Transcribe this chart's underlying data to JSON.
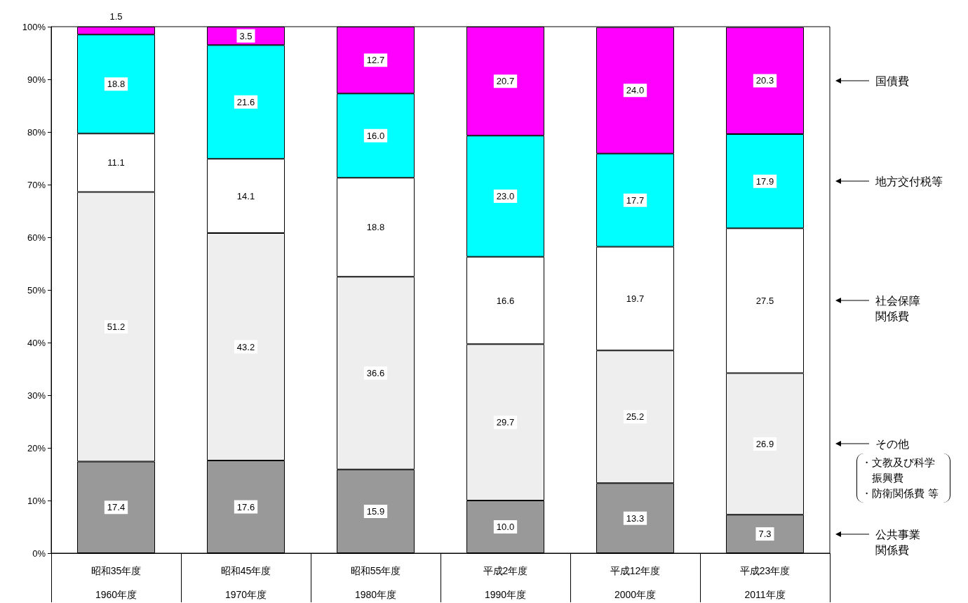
{
  "chart_data": {
    "type": "bar",
    "stacked": true,
    "categories": [
      "昭和35年度\n1960年度",
      "昭和45年度\n1970年度",
      "昭和55年度\n1980年度",
      "平成2年度\n1990年度",
      "平成12年度\n2000年度",
      "平成23年度\n2011年度"
    ],
    "series": [
      {
        "name": "公共事業関係費",
        "color": "#999999",
        "values": [
          17.4,
          17.6,
          15.9,
          10.0,
          13.3,
          7.3
        ],
        "value_labels": [
          "17.4",
          "17.6",
          "15.9",
          "10.0",
          "13.3",
          "7.3"
        ]
      },
      {
        "name": "その他",
        "color": "#eeeeee",
        "values": [
          51.2,
          43.2,
          36.6,
          29.7,
          25.2,
          26.9
        ],
        "value_labels": [
          "51.2",
          "43.2",
          "36.6",
          "29.7",
          "25.2",
          "26.9"
        ]
      },
      {
        "name": "社会保障関係費",
        "color": "#ffffff",
        "values": [
          11.1,
          14.1,
          18.8,
          16.6,
          19.7,
          27.5
        ],
        "value_labels": [
          "11.1",
          "14.1",
          "18.8",
          "16.6",
          "19.7",
          "27.5"
        ]
      },
      {
        "name": "地方交付税等",
        "color": "#00ffff",
        "values": [
          18.8,
          21.6,
          16.0,
          23.0,
          17.7,
          17.9
        ],
        "value_labels": [
          "18.8",
          "21.6",
          "16.0",
          "23.0",
          "17.7",
          "17.9"
        ]
      },
      {
        "name": "国債費",
        "color": "#ff00ff",
        "values": [
          1.5,
          3.5,
          12.7,
          20.7,
          24.0,
          20.3
        ],
        "value_labels": [
          "1.5",
          "3.5",
          "12.7",
          "20.7",
          "24.0",
          "20.3"
        ]
      }
    ],
    "ylim": [
      0,
      100
    ],
    "yticks": [
      {
        "value": 0,
        "label": "0%"
      },
      {
        "value": 10,
        "label": "10%"
      },
      {
        "value": 20,
        "label": "20%"
      },
      {
        "value": 30,
        "label": "30%"
      },
      {
        "value": 40,
        "label": "40%"
      },
      {
        "value": 50,
        "label": "50%"
      },
      {
        "value": 60,
        "label": "60%"
      },
      {
        "value": 70,
        "label": "70%"
      },
      {
        "value": 80,
        "label": "80%"
      },
      {
        "value": 90,
        "label": "90%"
      },
      {
        "value": 100,
        "label": "100%"
      }
    ],
    "grid": false,
    "legend": "right",
    "annotations": [
      "・文教及び科学振興費・防衛関係費 等"
    ]
  }
}
